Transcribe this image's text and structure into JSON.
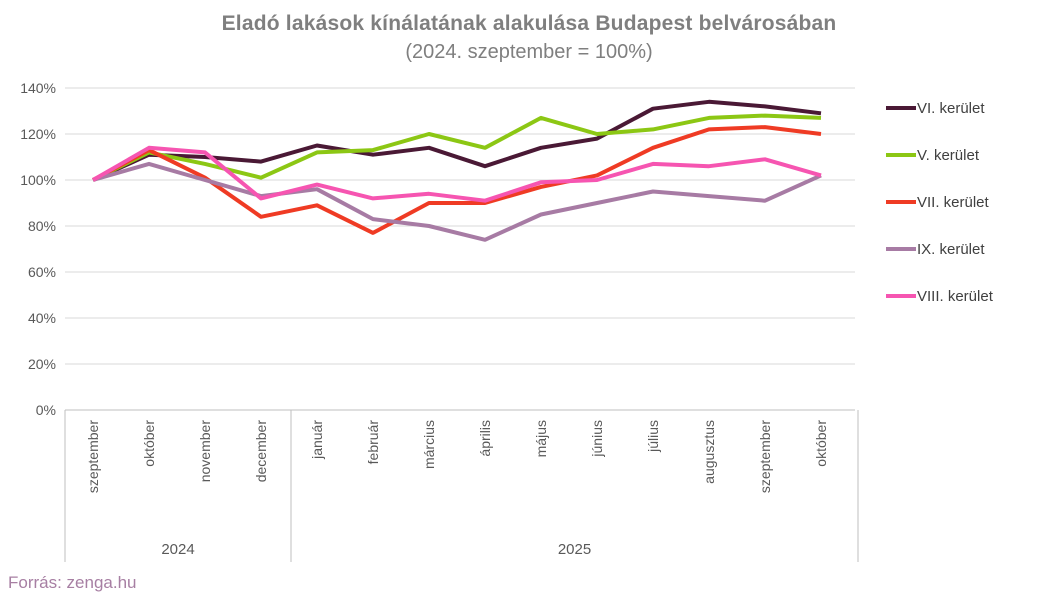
{
  "title": "Eladó lakások kínálatának alakulása Budapest belvárosában",
  "subtitle": "(2024. szeptember = 100%)",
  "source": "Forrás: zenga.hu",
  "colors": {
    "background": "#ffffff",
    "title_text": "#7f7f7f",
    "axis_text": "#595959",
    "gridline": "#d9d9d9",
    "axis_line": "#bfbfbf",
    "legend_text": "#404040",
    "source_text": "#a77fa3"
  },
  "chart_data": {
    "type": "line",
    "title": "Eladó lakások kínálatának alakulása Budapest belvárosában",
    "subtitle": "(2024. szeptember = 100%)",
    "grid": "horizontal",
    "legend_position": "right",
    "categories": [
      "szeptember",
      "október",
      "november",
      "december",
      "január",
      "február",
      "március",
      "április",
      "május",
      "június",
      "július",
      "augusztus",
      "szeptember",
      "október"
    ],
    "year_groups": [
      {
        "label": "2024",
        "span": 4
      },
      {
        "label": "2025",
        "span": 10
      }
    ],
    "y_axis": {
      "min": 0,
      "max": 140,
      "step": 20,
      "unit": "%",
      "tick_labels": [
        "0%",
        "20%",
        "40%",
        "60%",
        "80%",
        "100%",
        "120%",
        "140%"
      ]
    },
    "series": [
      {
        "name": "VI. kerület",
        "color": "#4a1935",
        "values": [
          100,
          111,
          110,
          108,
          115,
          111,
          114,
          106,
          114,
          118,
          131,
          134,
          132,
          129
        ]
      },
      {
        "name": "V. kerület",
        "color": "#8cc714",
        "values": [
          100,
          112,
          107,
          101,
          112,
          113,
          120,
          114,
          127,
          120,
          122,
          127,
          128,
          127
        ]
      },
      {
        "name": "VII. kerület",
        "color": "#ef3b24",
        "values": [
          100,
          113,
          101,
          84,
          89,
          77,
          90,
          90,
          97,
          102,
          114,
          122,
          123,
          120
        ]
      },
      {
        "name": "IX. kerület",
        "color": "#a77ba4",
        "values": [
          100,
          107,
          100,
          93,
          96,
          83,
          80,
          74,
          85,
          90,
          95,
          93,
          91,
          102
        ]
      },
      {
        "name": "VIII. kerület",
        "color": "#f655b1",
        "values": [
          100,
          114,
          112,
          92,
          98,
          92,
          94,
          91,
          99,
          100,
          107,
          106,
          109,
          102
        ]
      }
    ]
  }
}
